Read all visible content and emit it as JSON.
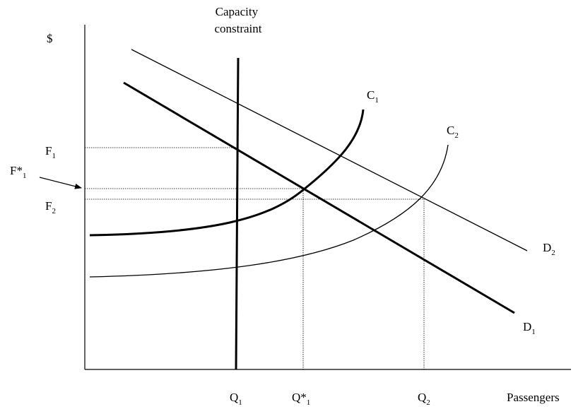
{
  "y_axis_label": "$",
  "x_axis_label": "Passengers",
  "capacity_label_line1": "Capacity",
  "capacity_label_line2": "constraint",
  "curves": {
    "C1": {
      "letter": "C",
      "sub": "1"
    },
    "C2": {
      "letter": "C",
      "sub": "2"
    },
    "D1": {
      "letter": "D",
      "sub": "1"
    },
    "D2": {
      "letter": "D",
      "sub": "2"
    }
  },
  "price_labels": {
    "F1": {
      "letter": "F",
      "sub": "1"
    },
    "F_star_1": {
      "letter": "F*",
      "sub": "1"
    },
    "F2": {
      "letter": "F",
      "sub": "2"
    }
  },
  "quantity_labels": {
    "Q1": {
      "letter": "Q",
      "sub": "1"
    },
    "Q_star_1": {
      "letter": "Q*",
      "sub": "1"
    },
    "Q2": {
      "letter": "Q",
      "sub": "2"
    }
  },
  "colors": {
    "line": "#000000",
    "background": "#ffffff"
  }
}
